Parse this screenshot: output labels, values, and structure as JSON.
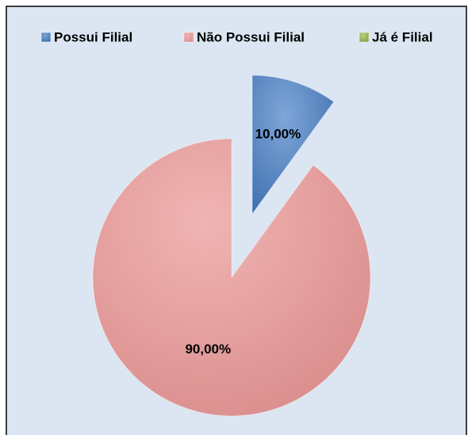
{
  "chart_data": {
    "type": "pie",
    "categories": [
      "Possui Filial",
      "Não Possui Filial",
      "Já é Filial"
    ],
    "values": [
      10,
      90,
      0
    ],
    "value_labels": [
      "10,00%",
      "90,00%",
      null
    ],
    "colors": [
      "#4f81bd",
      "#e6a3a2",
      "#9bbb59"
    ],
    "legend": "top"
  }
}
